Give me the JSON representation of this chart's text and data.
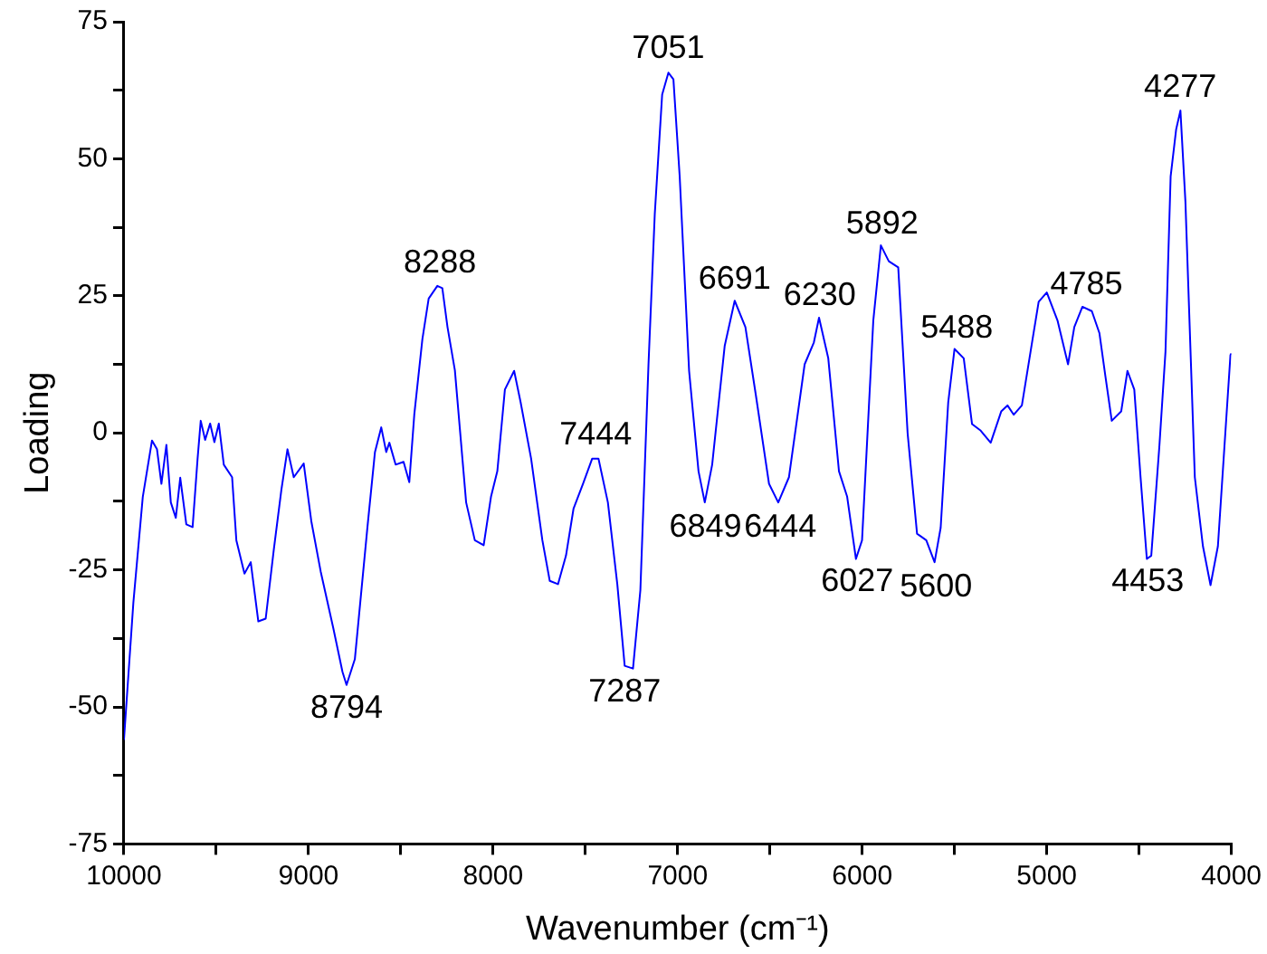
{
  "chart_data": {
    "type": "line",
    "xlabel": "Wavenumber (cm⁻¹)",
    "ylabel": "Loading",
    "x": [
      10000,
      9949,
      9898,
      9848,
      9821,
      9797,
      9770,
      9746,
      9719,
      9695,
      9662,
      9628,
      9601,
      9584,
      9560,
      9533,
      9510,
      9486,
      9459,
      9414,
      9391,
      9347,
      9313,
      9272,
      9232,
      9188,
      9147,
      9114,
      9080,
      9026,
      8985,
      8934,
      8866,
      8816,
      8794,
      8749,
      8681,
      8640,
      8606,
      8579,
      8562,
      8528,
      8485,
      8454,
      8427,
      8383,
      8349,
      8302,
      8275,
      8247,
      8207,
      8146,
      8099,
      8051,
      8011,
      7977,
      7936,
      7886,
      7851,
      7794,
      7733,
      7693,
      7648,
      7605,
      7564,
      7513,
      7463,
      7429,
      7378,
      7327,
      7287,
      7242,
      7202,
      7158,
      7124,
      7084,
      7050,
      7023,
      6989,
      6938,
      6887,
      6853,
      6813,
      6745,
      6691,
      6633,
      6576,
      6505,
      6455,
      6397,
      6312,
      6262,
      6234,
      6184,
      6126,
      6082,
      6034,
      6001,
      5940,
      5899,
      5856,
      5805,
      5754,
      5703,
      5653,
      5608,
      5575,
      5534,
      5500,
      5450,
      5405,
      5358,
      5304,
      5247,
      5213,
      5179,
      5135,
      5077,
      5044,
      5000,
      4942,
      4885,
      4851,
      4807,
      4756,
      4715,
      4682,
      4648,
      4597,
      4563,
      4526,
      4492,
      4458,
      4434,
      4390,
      4357,
      4329,
      4299,
      4276,
      4249,
      4198,
      4154,
      4113,
      4073,
      4005,
      4000
    ],
    "series": [
      {
        "color": "#0000ff",
        "values": [
          -56,
          -31,
          -11.7,
          -1.4,
          -3,
          -9.3,
          -2.2,
          -12.7,
          -15.5,
          -8.2,
          -16.7,
          -17.2,
          -4.7,
          2.2,
          -1.3,
          1.7,
          -1.7,
          1.7,
          -5.8,
          -8.1,
          -19.6,
          -25.7,
          -23.6,
          -34.4,
          -33.9,
          -21.3,
          -10.4,
          -3,
          -8.1,
          -5.6,
          -16.1,
          -25.3,
          -35.6,
          -43.6,
          -46,
          -41.3,
          -17.3,
          -3.5,
          1,
          -3.5,
          -1.8,
          -5.8,
          -5.3,
          -9,
          3.3,
          17.1,
          24.5,
          26.8,
          26.4,
          19.3,
          11.4,
          -12.7,
          -19.6,
          -20.5,
          -11.6,
          -7,
          7.9,
          11.3,
          5.6,
          -4.7,
          -19.6,
          -27,
          -27.6,
          -22.4,
          -13.8,
          -9.3,
          -4.7,
          -4.7,
          -12.7,
          -27.6,
          -42.5,
          -43,
          -28.7,
          12.5,
          39.9,
          61.7,
          65.7,
          64.5,
          46.8,
          11.3,
          -7,
          -12.7,
          -5.8,
          15.9,
          24.1,
          19.3,
          6.8,
          -9.3,
          -12.7,
          -8.1,
          12.5,
          16.5,
          21,
          13.6,
          -7,
          -11.6,
          -23,
          -19.6,
          20.5,
          34.2,
          31.3,
          30.2,
          -0.1,
          -18.4,
          -19.6,
          -23.6,
          -17.3,
          5.6,
          15.3,
          13.6,
          1.6,
          0.4,
          -1.8,
          3.9,
          5,
          3.3,
          5,
          17.1,
          23.9,
          25.6,
          20.5,
          12.5,
          19.3,
          23,
          22.2,
          18.2,
          10.2,
          2.2,
          3.9,
          11.3,
          7.9,
          -8.1,
          -23,
          -22.4,
          -2.4,
          14.8,
          46.8,
          55.4,
          58.8,
          42.2,
          -8.1,
          -20.7,
          -27.8,
          -20.7,
          14.2,
          14.5
        ]
      }
    ],
    "xlim": [
      10000,
      4000
    ],
    "xticks": [
      10000,
      {
        "value": 9500,
        "label": null
      },
      9000,
      {
        "value": 8500,
        "label": null
      },
      8000,
      {
        "value": 7500,
        "label": null
      },
      7000,
      {
        "value": 6500,
        "label": null
      },
      6000,
      {
        "value": 5500,
        "label": null
      },
      5000,
      {
        "value": 4500,
        "label": null
      },
      4000
    ],
    "ylim": [
      -75,
      75
    ],
    "yticks": [
      -75,
      {
        "value": -62.5,
        "label": null
      },
      -50,
      {
        "value": -37.5,
        "label": null
      },
      -25,
      {
        "value": -12.5,
        "label": null
      },
      0,
      {
        "value": 12.5,
        "label": null
      },
      25,
      {
        "value": 37.5,
        "label": null
      },
      50,
      {
        "value": 62.5,
        "label": null
      },
      75
    ],
    "grid": false,
    "legend": false,
    "marker": "none",
    "line_style": "solid",
    "annotations": [
      {
        "text": "8794",
        "x": 8794,
        "y": -46
      },
      {
        "text": "8288",
        "x": 8288,
        "y": 27
      },
      {
        "text": "7444",
        "x": 7444,
        "y": -4.5
      },
      {
        "text": "7287",
        "x": 7287,
        "y": -43
      },
      {
        "text": "7051",
        "x": 7051,
        "y": 66
      },
      {
        "text": "6849",
        "x": 6849,
        "y": -13
      },
      {
        "text": "6691",
        "x": 6691,
        "y": 24
      },
      {
        "text": "6444",
        "x": 6444,
        "y": -13
      },
      {
        "text": "6230",
        "x": 6230,
        "y": 21
      },
      {
        "text": "6027",
        "x": 6027,
        "y": -23
      },
      {
        "text": "5892",
        "x": 5892,
        "y": 34
      },
      {
        "text": "5600",
        "x": 5600,
        "y": -24
      },
      {
        "text": "5488",
        "x": 5488,
        "y": 15
      },
      {
        "text": "4785",
        "x": 4785,
        "y": 23
      },
      {
        "text": "4453",
        "x": 4453,
        "y": -23
      },
      {
        "text": "4277",
        "x": 4277,
        "y": 59
      }
    ]
  }
}
